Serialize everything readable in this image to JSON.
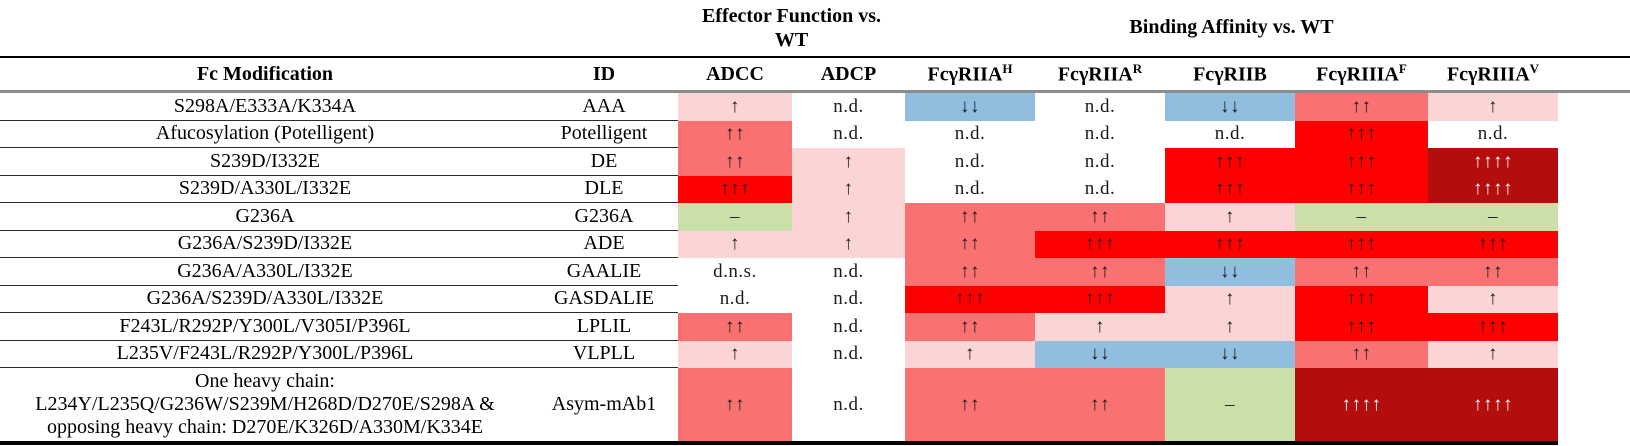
{
  "group_headers": {
    "effector": "Effector Function vs.\nWT",
    "binding": "Binding Affinity vs. WT"
  },
  "columns": [
    {
      "label": "Fc Modification"
    },
    {
      "label": "ID"
    },
    {
      "label": "ADCC"
    },
    {
      "label": "ADCP"
    },
    {
      "base": "FcγRIIA",
      "sup": "H"
    },
    {
      "base": "FcγRIIA",
      "sup": "R"
    },
    {
      "base": "FcγRIIB",
      "sup": ""
    },
    {
      "base": "FcγRIIIA",
      "sup": "F"
    },
    {
      "base": "FcγRIIIA",
      "sup": "V"
    }
  ],
  "palette": {
    "pink": {
      "bg": "#fbd5d5",
      "fg": "#1a1a1a"
    },
    "salmon": {
      "bg": "#f97170",
      "fg": "#1a1a1a"
    },
    "red": {
      "bg": "#fe0000",
      "fg": "#1a1a1a"
    },
    "darkred": {
      "bg": "#b30d0d",
      "fg": "#ffffff"
    },
    "blue": {
      "bg": "#8fbede",
      "fg": "#1a1a1a"
    },
    "green": {
      "bg": "#c9e0a8",
      "fg": "#1a1a1a"
    },
    "none": {
      "bg": "transparent",
      "fg": "#1a1a1a"
    }
  },
  "rows": [
    {
      "modification": "S298A/E333A/K334A",
      "id": "AAA",
      "cells": [
        {
          "label": "↑",
          "color": "pink"
        },
        {
          "label": "n.d.",
          "color": "none"
        },
        {
          "label": "↓↓",
          "color": "blue"
        },
        {
          "label": "n.d.",
          "color": "none"
        },
        {
          "label": "↓↓",
          "color": "blue"
        },
        {
          "label": "↑↑",
          "color": "salmon"
        },
        {
          "label": "↑",
          "color": "pink"
        }
      ]
    },
    {
      "modification": "Afucosylation (Potelligent)",
      "id": "Potelligent",
      "cells": [
        {
          "label": "↑↑",
          "color": "salmon"
        },
        {
          "label": "n.d.",
          "color": "none"
        },
        {
          "label": "n.d.",
          "color": "none"
        },
        {
          "label": "n.d.",
          "color": "none"
        },
        {
          "label": "n.d.",
          "color": "none"
        },
        {
          "label": "↑↑↑",
          "color": "red"
        },
        {
          "label": "n.d.",
          "color": "none"
        }
      ]
    },
    {
      "modification": "S239D/I332E",
      "id": "DE",
      "cells": [
        {
          "label": "↑↑",
          "color": "salmon"
        },
        {
          "label": "↑",
          "color": "pink"
        },
        {
          "label": "n.d.",
          "color": "none"
        },
        {
          "label": "n.d.",
          "color": "none"
        },
        {
          "label": "↑↑↑",
          "color": "red"
        },
        {
          "label": "↑↑↑",
          "color": "red"
        },
        {
          "label": "↑↑↑↑",
          "color": "darkred"
        }
      ]
    },
    {
      "modification": "S239D/A330L/I332E",
      "id": "DLE",
      "cells": [
        {
          "label": "↑↑↑",
          "color": "red"
        },
        {
          "label": "↑",
          "color": "pink"
        },
        {
          "label": "n.d.",
          "color": "none"
        },
        {
          "label": "n.d.",
          "color": "none"
        },
        {
          "label": "↑↑↑",
          "color": "red"
        },
        {
          "label": "↑↑↑",
          "color": "red"
        },
        {
          "label": "↑↑↑↑",
          "color": "darkred"
        }
      ]
    },
    {
      "modification": "G236A",
      "id": "G236A",
      "cells": [
        {
          "label": "–",
          "color": "green"
        },
        {
          "label": "↑",
          "color": "pink"
        },
        {
          "label": "↑↑",
          "color": "salmon"
        },
        {
          "label": "↑↑",
          "color": "salmon"
        },
        {
          "label": "↑",
          "color": "pink"
        },
        {
          "label": "–",
          "color": "green"
        },
        {
          "label": "–",
          "color": "green"
        }
      ]
    },
    {
      "modification": "G236A/S239D/I332E",
      "id": "ADE",
      "cells": [
        {
          "label": "↑",
          "color": "pink"
        },
        {
          "label": "↑",
          "color": "pink"
        },
        {
          "label": "↑↑",
          "color": "salmon"
        },
        {
          "label": "↑↑↑",
          "color": "red"
        },
        {
          "label": "↑↑↑",
          "color": "red"
        },
        {
          "label": "↑↑↑",
          "color": "red"
        },
        {
          "label": "↑↑↑",
          "color": "red"
        }
      ]
    },
    {
      "modification": "G236A/A330L/I332E",
      "id": "GAALIE",
      "cells": [
        {
          "label": "d.n.s.",
          "color": "none"
        },
        {
          "label": "n.d.",
          "color": "none"
        },
        {
          "label": "↑↑",
          "color": "salmon"
        },
        {
          "label": "↑↑",
          "color": "salmon"
        },
        {
          "label": "↓↓",
          "color": "blue"
        },
        {
          "label": "↑↑",
          "color": "salmon"
        },
        {
          "label": "↑↑",
          "color": "salmon"
        }
      ]
    },
    {
      "modification": "G236A/S239D/A330L/I332E",
      "id": "GASDALIE",
      "cells": [
        {
          "label": "n.d.",
          "color": "none"
        },
        {
          "label": "n.d.",
          "color": "none"
        },
        {
          "label": "↑↑↑",
          "color": "red"
        },
        {
          "label": "↑↑↑",
          "color": "red"
        },
        {
          "label": "↑",
          "color": "pink"
        },
        {
          "label": "↑↑↑",
          "color": "red"
        },
        {
          "label": "↑",
          "color": "pink"
        }
      ]
    },
    {
      "modification": "F243L/R292P/Y300L/V305I/P396L",
      "id": "LPLIL",
      "cells": [
        {
          "label": "↑↑",
          "color": "salmon"
        },
        {
          "label": "n.d.",
          "color": "none"
        },
        {
          "label": "↑↑",
          "color": "salmon"
        },
        {
          "label": "↑",
          "color": "pink"
        },
        {
          "label": "↑",
          "color": "pink"
        },
        {
          "label": "↑↑↑",
          "color": "red"
        },
        {
          "label": "↑↑↑",
          "color": "red"
        }
      ]
    },
    {
      "modification": "L235V/F243L/R292P/Y300L/P396L",
      "id": "VLPLL",
      "cells": [
        {
          "label": "↑",
          "color": "pink"
        },
        {
          "label": "n.d.",
          "color": "none"
        },
        {
          "label": "↑",
          "color": "pink"
        },
        {
          "label": "↓↓",
          "color": "blue"
        },
        {
          "label": "↓↓",
          "color": "blue"
        },
        {
          "label": "↑↑",
          "color": "salmon"
        },
        {
          "label": "↑",
          "color": "pink"
        }
      ]
    },
    {
      "modification": "One heavy chain:\nL234Y/L235Q/G236W/S239M/H268D/D270E/S298A &\nopposing heavy chain: D270E/K326D/A330M/K334E",
      "id": "Asym-mAb1",
      "cells": [
        {
          "label": "↑↑",
          "color": "salmon"
        },
        {
          "label": "n.d.",
          "color": "none"
        },
        {
          "label": "↑↑",
          "color": "salmon"
        },
        {
          "label": "↑↑",
          "color": "salmon"
        },
        {
          "label": "–",
          "color": "green"
        },
        {
          "label": "↑↑↑↑",
          "color": "darkred"
        },
        {
          "label": "↑↑↑↑",
          "color": "darkred"
        }
      ]
    }
  ]
}
